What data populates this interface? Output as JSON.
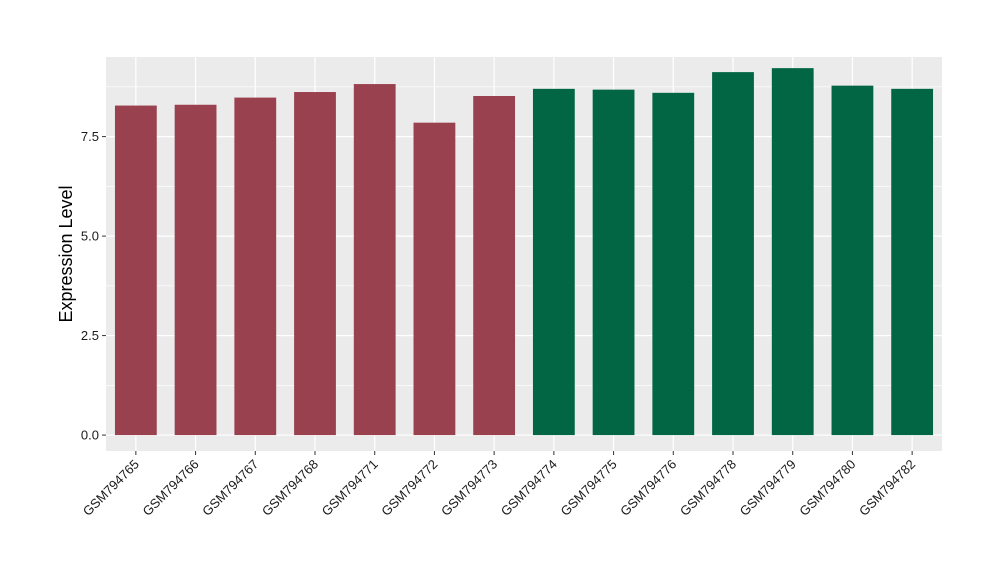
{
  "chart_data": {
    "type": "bar",
    "ylabel": "Expression Level",
    "xlabel": "",
    "ylim": [
      -0.4,
      9.5
    ],
    "yticks": [
      0.0,
      2.5,
      5.0,
      7.5
    ],
    "ytick_labels": [
      "0.0",
      "2.5",
      "5.0",
      "7.5"
    ],
    "grid": true,
    "categories": [
      "GSM794765",
      "GSM794766",
      "GSM794767",
      "GSM794768",
      "GSM794771",
      "GSM794772",
      "GSM794773",
      "GSM794774",
      "GSM794775",
      "GSM794776",
      "GSM794778",
      "GSM794779",
      "GSM794780",
      "GSM794782"
    ],
    "values": [
      8.28,
      8.3,
      8.48,
      8.62,
      8.82,
      7.85,
      8.52,
      8.7,
      8.68,
      8.6,
      9.12,
      9.22,
      8.78,
      8.7
    ],
    "group_index": [
      0,
      0,
      0,
      0,
      0,
      0,
      0,
      1,
      1,
      1,
      1,
      1,
      1,
      1
    ],
    "group_colors": [
      "#9a414f",
      "#026644"
    ],
    "panel_background": "#ebebeb",
    "grid_color": "#ffffff"
  }
}
